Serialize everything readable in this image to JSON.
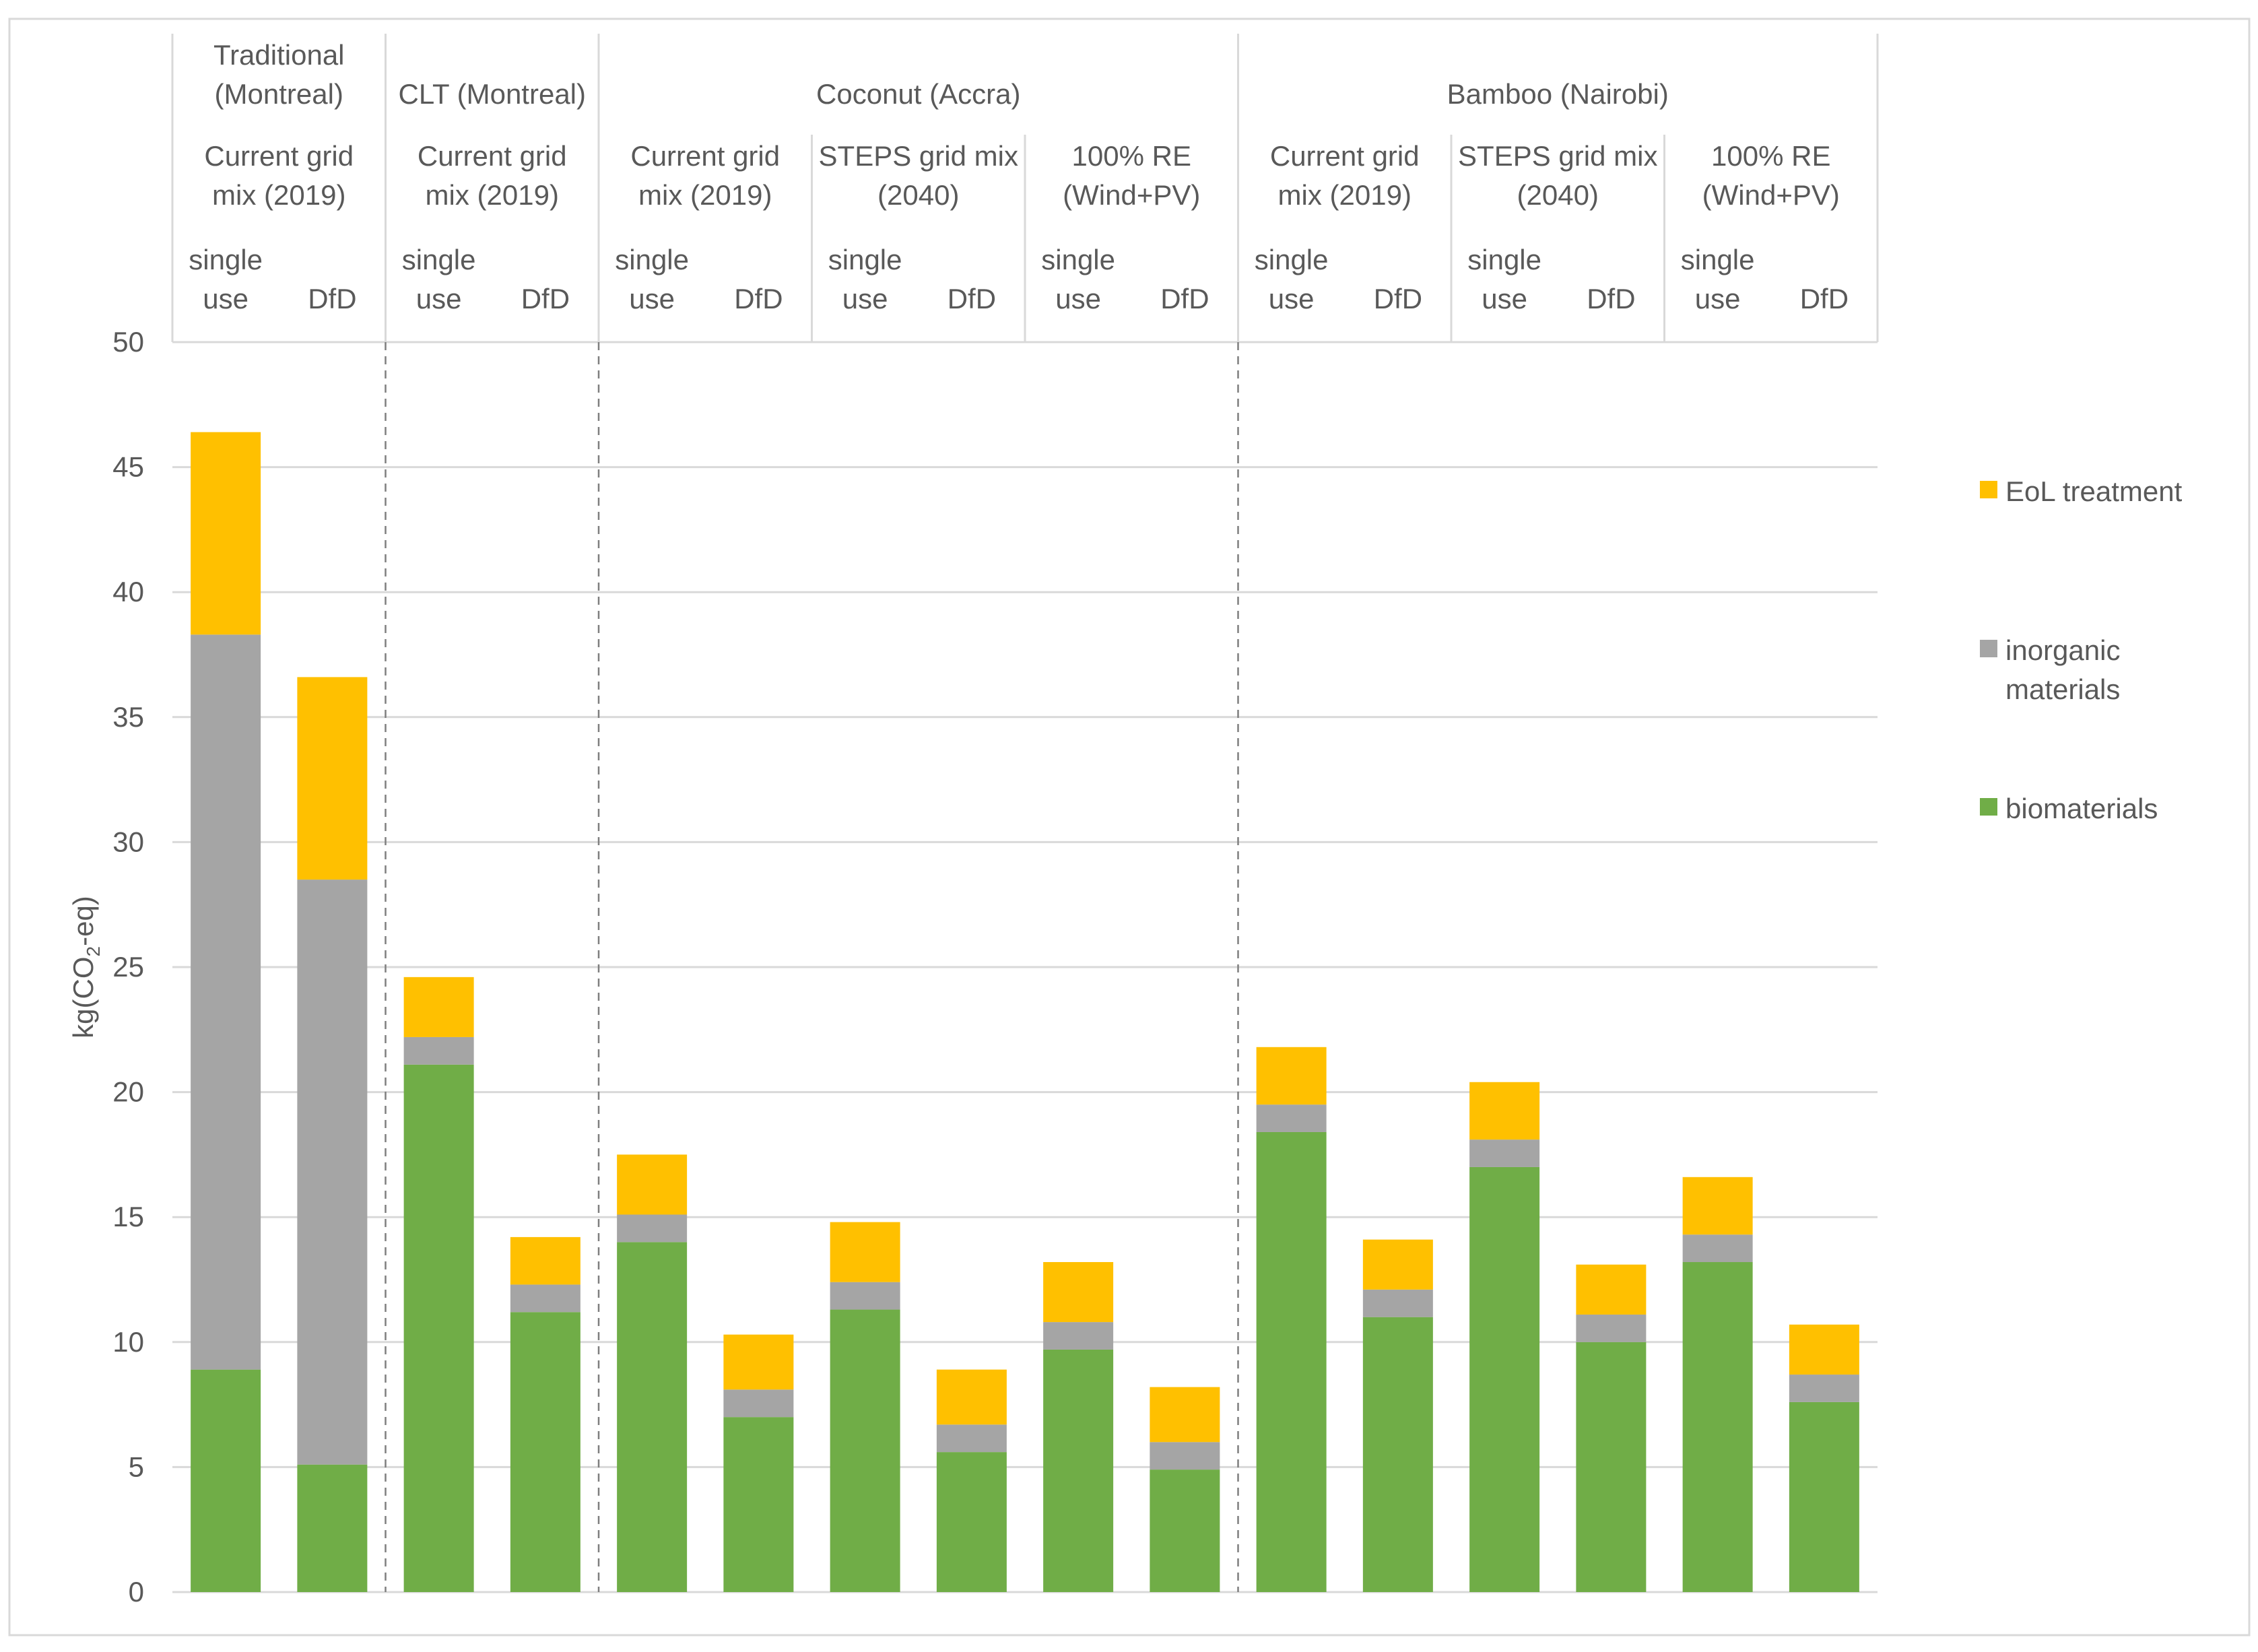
{
  "chart_data": {
    "type": "bar",
    "stacked": true,
    "ylabel_parts": [
      "kg(CO",
      "2",
      "-eq)"
    ],
    "ylim": [
      0,
      50
    ],
    "yticks": [
      0,
      5,
      10,
      15,
      20,
      25,
      30,
      35,
      40,
      45,
      50
    ],
    "grid": true,
    "legend_position": "right",
    "groups": [
      {
        "name_lines": [
          "Traditional",
          "(Montreal)"
        ],
        "start": 0,
        "count": 2
      },
      {
        "name_lines": [
          "CLT (Montreal)"
        ],
        "start": 2,
        "count": 2
      },
      {
        "name_lines": [
          "Coconut (Accra)"
        ],
        "start": 4,
        "count": 6
      },
      {
        "name_lines": [
          "Bamboo (Nairobi)"
        ],
        "start": 10,
        "count": 6
      }
    ],
    "subgroups": [
      {
        "label_lines": [
          "Current grid",
          "mix (2019)"
        ],
        "start": 0,
        "count": 2
      },
      {
        "label_lines": [
          "Current grid",
          "mix (2019)"
        ],
        "start": 2,
        "count": 2
      },
      {
        "label_lines": [
          "Current grid",
          "mix (2019)"
        ],
        "start": 4,
        "count": 2
      },
      {
        "label_lines": [
          "STEPS grid mix",
          "(2040)"
        ],
        "start": 6,
        "count": 2
      },
      {
        "label_lines": [
          "100% RE",
          "(Wind+PV)"
        ],
        "start": 8,
        "count": 2
      },
      {
        "label_lines": [
          "Current grid",
          "mix (2019)"
        ],
        "start": 10,
        "count": 2
      },
      {
        "label_lines": [
          "STEPS grid mix",
          "(2040)"
        ],
        "start": 12,
        "count": 2
      },
      {
        "label_lines": [
          "100% RE",
          "(Wind+PV)"
        ],
        "start": 14,
        "count": 2
      }
    ],
    "categories": [
      [
        "single",
        "use"
      ],
      [
        "DfD"
      ],
      [
        "single",
        "use"
      ],
      [
        "DfD"
      ],
      [
        "single",
        "use"
      ],
      [
        "DfD"
      ],
      [
        "single",
        "use"
      ],
      [
        "DfD"
      ],
      [
        "single",
        "use"
      ],
      [
        "DfD"
      ],
      [
        "single",
        "use"
      ],
      [
        "DfD"
      ],
      [
        "single",
        "use"
      ],
      [
        "DfD"
      ],
      [
        "single",
        "use"
      ],
      [
        "DfD"
      ]
    ],
    "series": [
      {
        "name": "biomaterials",
        "color": "#70AD47",
        "values": [
          8.9,
          5.1,
          21.1,
          11.2,
          14.0,
          7.0,
          11.3,
          5.6,
          9.7,
          4.9,
          18.4,
          11.0,
          17.0,
          10.0,
          13.2,
          7.6
        ]
      },
      {
        "name": "inorganic materials",
        "color": "#A5A5A5",
        "values": [
          29.4,
          23.4,
          1.1,
          1.1,
          1.1,
          1.1,
          1.1,
          1.1,
          1.1,
          1.1,
          1.1,
          1.1,
          1.1,
          1.1,
          1.1,
          1.1
        ]
      },
      {
        "name": "EoL treatment",
        "color": "#FFC000",
        "values": [
          8.1,
          8.1,
          2.4,
          1.9,
          2.4,
          2.2,
          2.4,
          2.2,
          2.4,
          2.2,
          2.3,
          2.0,
          2.3,
          2.0,
          2.3,
          2.0
        ]
      }
    ],
    "legend": [
      {
        "label_lines": [
          "EoL treatment"
        ],
        "color": "#FFC000"
      },
      {
        "label_lines": [
          "inorganic",
          "materials"
        ],
        "color": "#A5A5A5"
      },
      {
        "label_lines": [
          "biomaterials"
        ],
        "color": "#70AD47"
      }
    ]
  }
}
